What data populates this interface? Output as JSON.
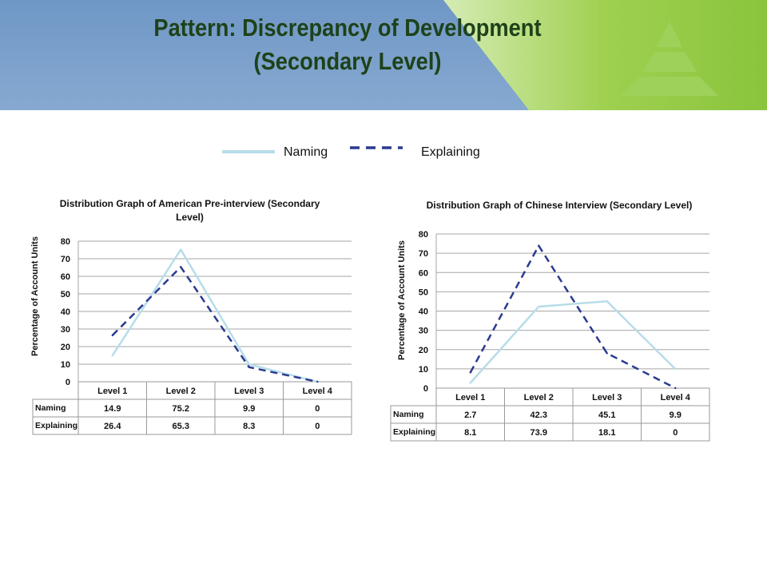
{
  "slide": {
    "title_line1": "Pattern: Discrepancy of Development",
    "title_line2": "(Secondary Level)",
    "colors": {
      "banner_blue": "#7ea3cc",
      "banner_green": "#8cc63e",
      "title": "#1e4219"
    }
  },
  "legend": {
    "naming": "Naming",
    "explaining": "Explaining",
    "naming_color": "#b7dde8",
    "explaining_color": "#2b3a8f"
  },
  "chart_data": [
    {
      "type": "line",
      "title": "Distribution Graph of American Pre-interview (Secondary Level)",
      "ylabel": "Percentage of Account Units",
      "categories": [
        "Level 1",
        "Level 2",
        "Level 3",
        "Level 4"
      ],
      "ylim": [
        0,
        80
      ],
      "yticks": [
        "0",
        "10",
        "20",
        "30",
        "40",
        "50",
        "60",
        "70",
        "80"
      ],
      "grid": true,
      "series": [
        {
          "name": "Naming",
          "values": [
            14.9,
            75.2,
            9.9,
            0
          ],
          "labels": [
            "14.9",
            "75.2",
            "9.9",
            "0"
          ]
        },
        {
          "name": "Explaining",
          "values": [
            26.4,
            65.3,
            8.3,
            0
          ],
          "labels": [
            "26.4",
            "65.3",
            "8.3",
            "0"
          ]
        }
      ]
    },
    {
      "type": "line",
      "title": "Distribution Graph of Chinese Interview (Secondary Level)",
      "ylabel": "Percentage of Account Units",
      "categories": [
        "Level 1",
        "Level 2",
        "Level 3",
        "Level 4"
      ],
      "ylim": [
        0,
        80
      ],
      "yticks": [
        "0",
        "10",
        "20",
        "30",
        "40",
        "50",
        "60",
        "70",
        "80"
      ],
      "grid": true,
      "series": [
        {
          "name": "Naming",
          "values": [
            2.7,
            42.3,
            45.1,
            9.9
          ],
          "labels": [
            "2.7",
            "42.3",
            "45.1",
            "9.9"
          ]
        },
        {
          "name": "Explaining",
          "values": [
            8.1,
            73.9,
            18.1,
            0
          ],
          "labels": [
            "8.1",
            "73.9",
            "18.1",
            "0"
          ]
        }
      ]
    }
  ]
}
